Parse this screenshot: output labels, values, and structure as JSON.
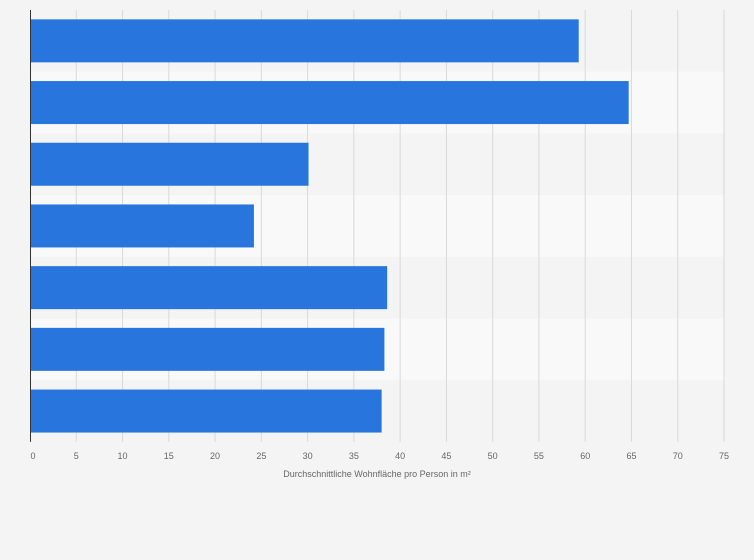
{
  "chart_data": {
    "type": "bar",
    "orientation": "horizontal",
    "categories": [
      "",
      "",
      "",
      "",
      "",
      "",
      ""
    ],
    "values": [
      59.3,
      64.7,
      30.1,
      24.2,
      38.6,
      38.3,
      38.0
    ],
    "title": "",
    "xlabel": "Durchschnittliche Wohnfläche pro Person in m²",
    "ylabel": "",
    "xlim": [
      0,
      75
    ],
    "x_ticks": [
      0,
      5,
      10,
      15,
      20,
      25,
      30,
      35,
      40,
      45,
      50,
      55,
      60,
      65,
      70,
      75
    ],
    "grid": true,
    "legend": "none",
    "colors": {
      "bar": "#2876dd",
      "band_light": "#f9f9f9",
      "band_dark": "#f4f4f4",
      "grid": "#d9d9d9",
      "axis": "#333333",
      "text": "#666666"
    }
  }
}
